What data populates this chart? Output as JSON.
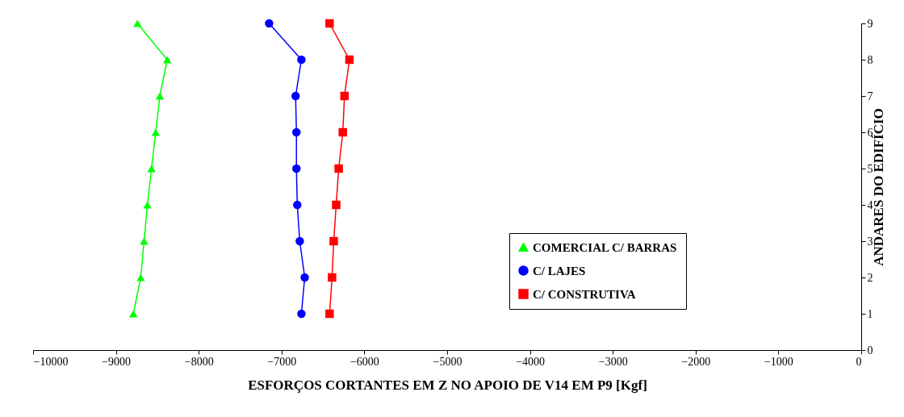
{
  "chart_data": {
    "type": "line",
    "xlabel": "ESFORÇOS CORTANTES EM Z NO APOIO DE V14 EM P9 [Kgf]",
    "ylabel": "ANDARES DO EDIFÍCIO",
    "xlim": [
      -10000,
      0
    ],
    "xticks": [
      -10000,
      -9000,
      -8000,
      -7000,
      -6000,
      -5000,
      -4000,
      -3000,
      -2000,
      -1000,
      0
    ],
    "ylim": [
      0,
      9
    ],
    "yticks": [
      0,
      1,
      2,
      3,
      4,
      5,
      6,
      7,
      8,
      9
    ],
    "grid": false,
    "legend": "bottom right",
    "series": [
      {
        "name": "COMERCIAL C/ BARRAS",
        "color": "#00ff00",
        "marker": "triangle",
        "x": [
          -8790,
          -8700,
          -8660,
          -8620,
          -8570,
          -8520,
          -8470,
          -8380,
          -8740
        ],
        "values": [
          1,
          2,
          3,
          4,
          5,
          6,
          7,
          8,
          9
        ]
      },
      {
        "name": "C/ LAJES",
        "color": "#0000ff",
        "marker": "circle",
        "x": [
          -6760,
          -6720,
          -6780,
          -6810,
          -6820,
          -6820,
          -6830,
          -6760,
          -7150
        ],
        "values": [
          1,
          2,
          3,
          4,
          5,
          6,
          7,
          8,
          9
        ]
      },
      {
        "name": "C/ CONSTRUTIVA",
        "color": "#ff0000",
        "marker": "square",
        "x": [
          -6420,
          -6390,
          -6370,
          -6340,
          -6310,
          -6260,
          -6240,
          -6180,
          -6420
        ],
        "values": [
          1,
          2,
          3,
          4,
          5,
          6,
          7,
          8,
          9
        ]
      }
    ]
  }
}
